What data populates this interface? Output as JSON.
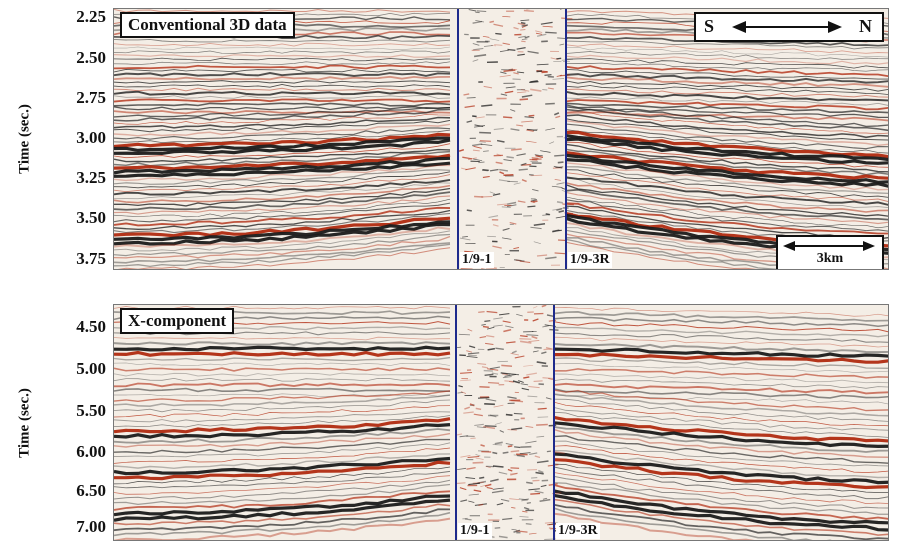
{
  "top_panel": {
    "title": "Conventional 3D data",
    "y_axis_label": "Time (sec.)",
    "y_ticks": [
      "2.25",
      "2.50",
      "2.75",
      "3.00",
      "3.25",
      "3.50",
      "3.75"
    ],
    "wells": [
      "1/9-1",
      "1/9-3R"
    ],
    "orientation": {
      "south": "S",
      "north": "N"
    },
    "scale_bar": "3km"
  },
  "bottom_panel": {
    "title": "X-component",
    "y_axis_label": "Time (sec.)",
    "y_ticks": [
      "4.50",
      "5.00",
      "5.50",
      "6.00",
      "6.50",
      "7.00"
    ],
    "wells": [
      "1/9-1",
      "1/9-3R"
    ]
  },
  "colors": {
    "peak": "#b02a10",
    "trough": "#1a1a1a",
    "well_line": "#1e2a8c"
  }
}
